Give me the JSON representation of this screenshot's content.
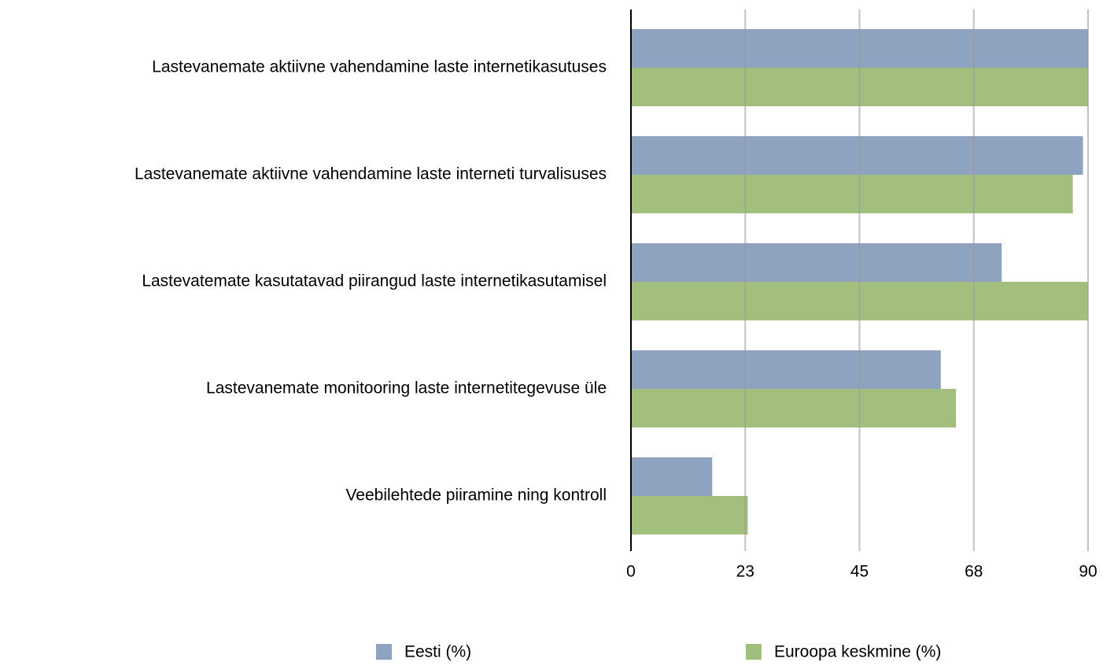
{
  "chart_data": {
    "type": "bar",
    "orientation": "horizontal",
    "categories": [
      "Lastevanemate aktiivne vahendamine laste internetikasutuses",
      "Lastevanemate aktiivne vahendamine laste interneti turvalisuses",
      "Lastevatemate kasutatavad piirangud laste internetikasutamisel",
      "Lastevanemate monitooring laste internetitegevuse üle",
      "Veebilehtede piiramine ning kontroll"
    ],
    "series": [
      {
        "name": "Eesti (%)",
        "color": "#8ea3bf",
        "values": [
          90,
          89,
          73,
          61,
          16
        ]
      },
      {
        "name": "Euroopa keskmine (%)",
        "color": "#a3bf7e",
        "values": [
          90,
          87,
          90,
          64,
          23
        ]
      }
    ],
    "xlim": [
      0,
      90
    ],
    "xticks": [
      0,
      {
        "value": 22.5,
        "label": "23"
      },
      45,
      {
        "value": 67.5,
        "label": "68"
      },
      90
    ],
    "grid": true,
    "legend": "bottom"
  }
}
